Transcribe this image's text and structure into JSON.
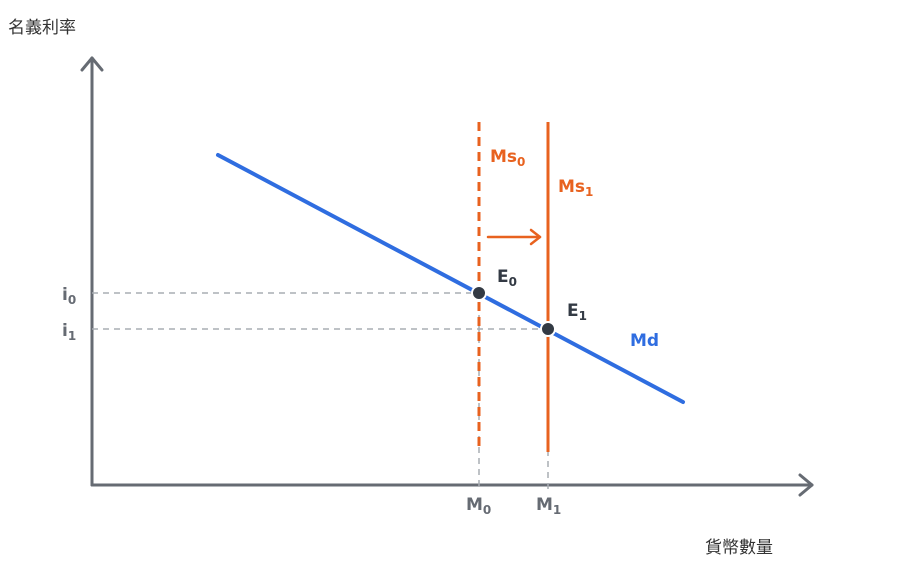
{
  "y_axis_label": "名義利率",
  "x_axis_label": "貨幣數量",
  "rate_labels": [
    {
      "text": "i",
      "sub": "0"
    },
    {
      "text": "i",
      "sub": "1"
    }
  ],
  "quantity_labels": [
    {
      "text": "M",
      "sub": "0"
    },
    {
      "text": "M",
      "sub": "1"
    }
  ],
  "supply_labels": [
    {
      "text": "Ms",
      "sub": "0"
    },
    {
      "text": "Ms",
      "sub": "1"
    }
  ],
  "equilibrium_labels": [
    {
      "text": "E",
      "sub": "0"
    },
    {
      "text": "E",
      "sub": "1"
    }
  ],
  "demand_label": "Md"
}
